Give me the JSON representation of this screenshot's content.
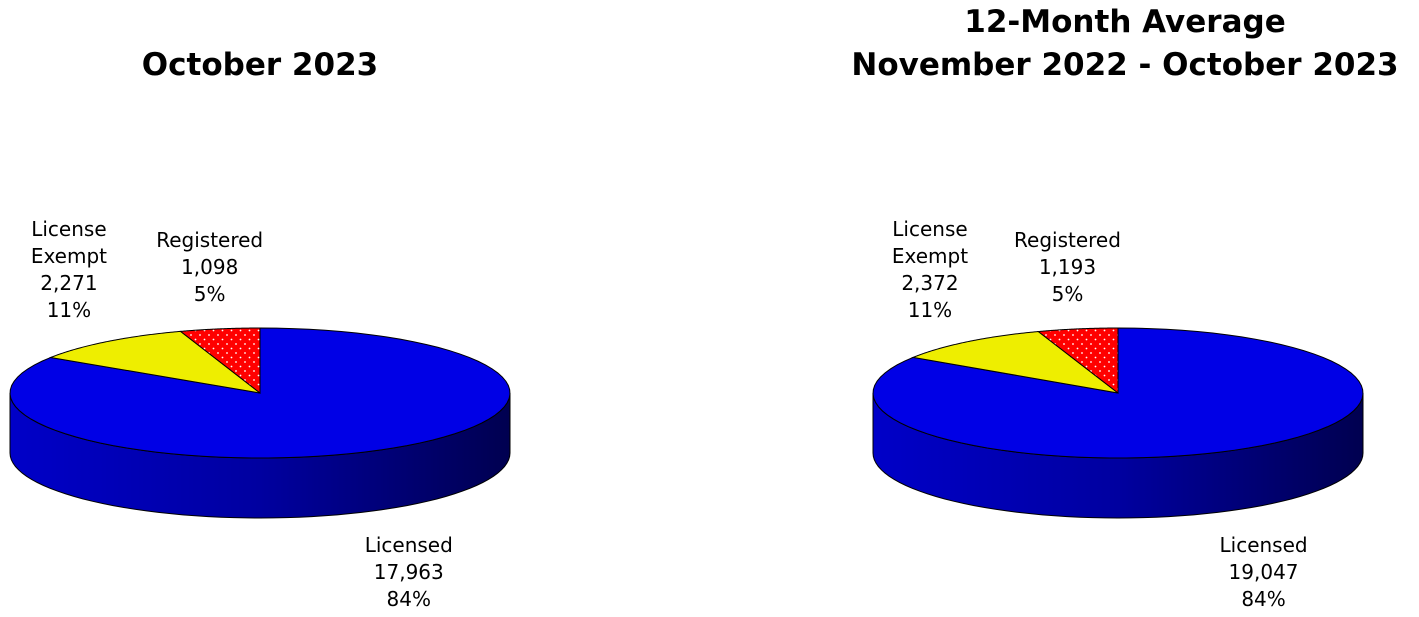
{
  "chart_data": [
    {
      "type": "pie",
      "title": "October 2023",
      "categories": [
        "Licensed",
        "License\nExempt",
        "Registered"
      ],
      "values": [
        17963,
        2271,
        1098
      ],
      "value_labels": [
        "17,963",
        "2,271",
        "1,098"
      ],
      "percent_labels": [
        "84%",
        "11%",
        "5%"
      ],
      "colors": [
        "#0000e6",
        "#eeee00",
        "#ff0000"
      ]
    },
    {
      "type": "pie",
      "title": "12-Month Average",
      "subtitle": "November 2022 - October 2023",
      "categories": [
        "Licensed",
        "License\nExempt",
        "Registered"
      ],
      "values": [
        19047,
        2372,
        1193
      ],
      "value_labels": [
        "19,047",
        "2,372",
        "1,193"
      ],
      "percent_labels": [
        "84%",
        "11%",
        "5%"
      ],
      "colors": [
        "#0000e6",
        "#eeee00",
        "#ff0000"
      ]
    }
  ]
}
